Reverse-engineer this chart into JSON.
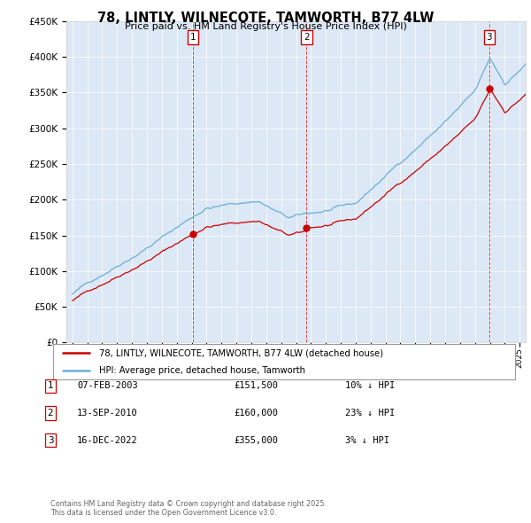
{
  "title": "78, LINTLY, WILNECOTE, TAMWORTH, B77 4LW",
  "subtitle": "Price paid vs. HM Land Registry's House Price Index (HPI)",
  "legend_line1": "78, LINTLY, WILNECOTE, TAMWORTH, B77 4LW (detached house)",
  "legend_line2": "HPI: Average price, detached house, Tamworth",
  "sale_dates_num": [
    2003.09,
    2010.71,
    2022.96
  ],
  "sale_prices": [
    151500,
    160000,
    355000
  ],
  "sale_labels": [
    "1",
    "2",
    "3"
  ],
  "annotation_rows": [
    {
      "label": "1",
      "date": "07-FEB-2003",
      "price": "£151,500",
      "note": "10% ↓ HPI"
    },
    {
      "label": "2",
      "date": "13-SEP-2010",
      "price": "£160,000",
      "note": "23% ↓ HPI"
    },
    {
      "label": "3",
      "date": "16-DEC-2022",
      "price": "£355,000",
      "note": "3% ↓ HPI"
    }
  ],
  "footer": "Contains HM Land Registry data © Crown copyright and database right 2025.\nThis data is licensed under the Open Government Licence v3.0.",
  "hpi_color": "#6baed6",
  "sale_color": "#cc0000",
  "vline_color": "#cc0000",
  "background_color": "#dce8f5",
  "ylim": [
    0,
    450000
  ],
  "xlim_start": 1994.6,
  "xlim_end": 2025.4
}
